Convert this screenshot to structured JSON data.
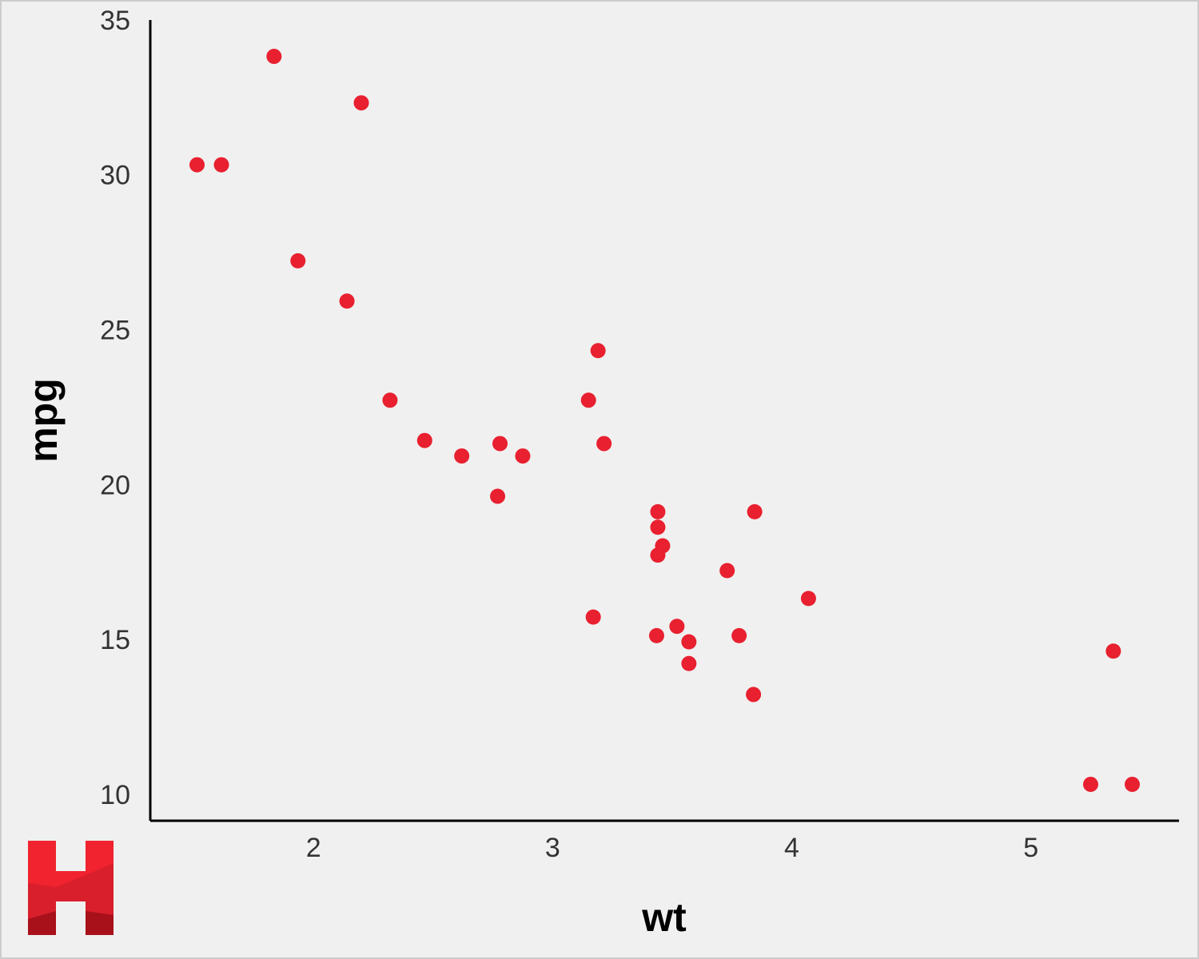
{
  "chart_data": {
    "type": "scatter",
    "x_label": "wt",
    "y_label": "mpg",
    "x": [
      2.62,
      2.875,
      2.32,
      3.215,
      3.44,
      3.46,
      3.57,
      3.19,
      3.15,
      3.44,
      3.44,
      4.07,
      3.73,
      3.78,
      5.25,
      5.424,
      5.345,
      2.2,
      1.615,
      1.835,
      2.465,
      3.52,
      3.435,
      3.84,
      3.845,
      1.935,
      2.14,
      1.513,
      3.17,
      2.77,
      3.57,
      2.78
    ],
    "values": [
      21.0,
      21.0,
      22.8,
      21.4,
      18.7,
      18.1,
      14.3,
      24.4,
      22.8,
      19.2,
      17.8,
      16.4,
      17.3,
      15.2,
      10.4,
      10.4,
      14.7,
      32.4,
      30.4,
      33.9,
      21.5,
      15.5,
      15.2,
      13.3,
      19.2,
      27.3,
      26.0,
      30.4,
      15.8,
      19.7,
      15.0,
      21.4
    ],
    "color": "#e8202f",
    "xlim": [
      1.31745,
      5.61955
    ],
    "xticks": [
      2,
      3,
      4,
      5
    ],
    "ylim": [
      9.225,
      35.075
    ],
    "yticks": [
      10,
      15,
      20,
      25,
      30,
      35
    ]
  }
}
